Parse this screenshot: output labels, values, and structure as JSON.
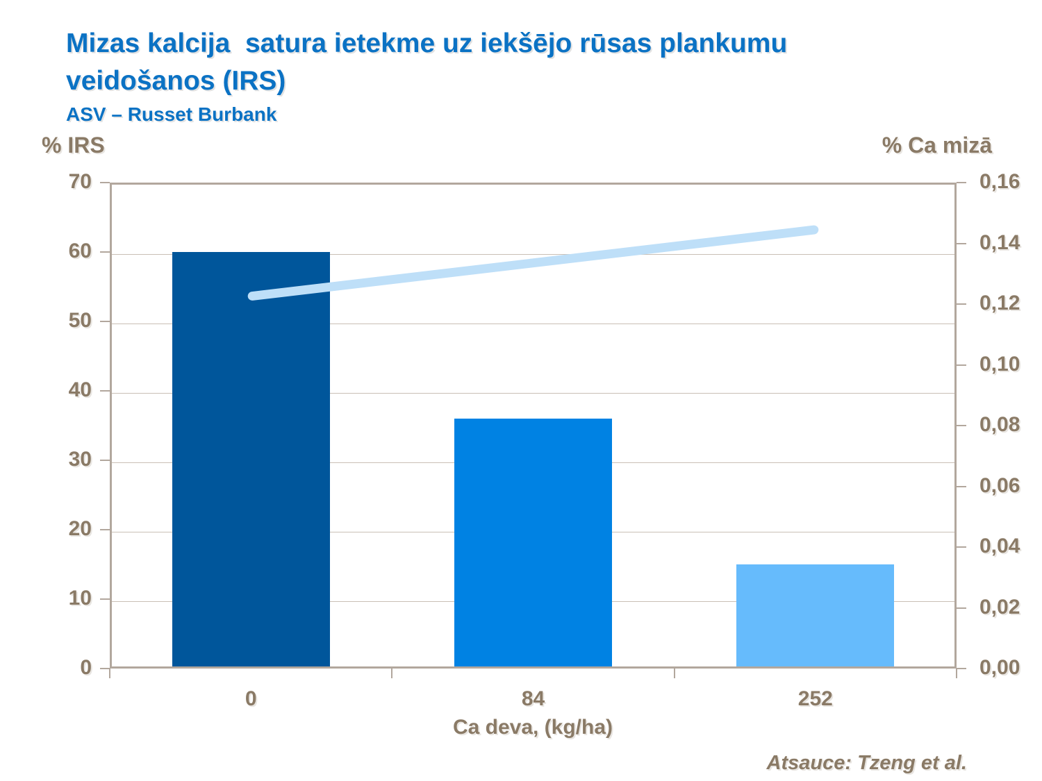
{
  "slide": {
    "title": "Mizas kalcija  satura ietekme uz iekšējo rūsas plankumu veidošanos (IRS)",
    "subtitle": "ASV – Russet Burbank",
    "source": "Atsauce: Tzeng et al."
  },
  "colors": {
    "title_blue": "#0b72c4",
    "axis_text_brown": "#8a7a66",
    "frame": "#b2a79d",
    "gridline": "#c9bfb5",
    "background": "#ffffff"
  },
  "chart_data": {
    "type": "bar",
    "title": "Mizas kalcija  satura ietekme uz iekšējo rūsas plankumu veidošanos (IRS)",
    "subtitle": "ASV – Russet Burbank",
    "categories": [
      "0",
      "84",
      "252"
    ],
    "xlabel": "Ca deva, (kg/ha)",
    "grid": true,
    "legend": "none",
    "series": [
      {
        "name": "% IRS",
        "type": "bar",
        "axis": "left",
        "values": [
          60,
          36,
          15
        ],
        "bar_colors": [
          "#00569b",
          "#0082e3",
          "#66bbfc"
        ]
      },
      {
        "name": "% Ca mizā",
        "type": "line",
        "axis": "right",
        "values": [
          0.123,
          0.134,
          0.145
        ],
        "color": "#bedff8",
        "stroke_width": 13
      }
    ],
    "left_axis": {
      "label": "% IRS",
      "min": 0,
      "max": 70,
      "step": 10,
      "tick_labels": [
        "0",
        "10",
        "20",
        "30",
        "40",
        "50",
        "60",
        "70"
      ]
    },
    "right_axis": {
      "label": "% Ca mizā",
      "min": 0,
      "max": 0.16,
      "step": 0.02,
      "tick_labels": [
        "0,00",
        "0,02",
        "0,04",
        "0,06",
        "0,08",
        "0,10",
        "0,12",
        "0,14",
        "0,16"
      ]
    }
  }
}
